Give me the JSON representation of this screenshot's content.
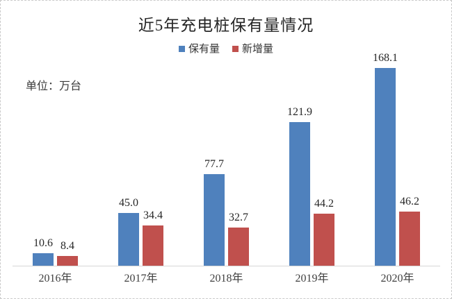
{
  "title": "近5年充电桩保有量情况",
  "unit_label": "单位：万台",
  "legend": {
    "items": [
      {
        "label": "保有量",
        "color": "#4f81bd"
      },
      {
        "label": "新增量",
        "color": "#c0504d"
      }
    ]
  },
  "chart_data": {
    "type": "bar",
    "title": "近5年充电桩保有量情况",
    "unit": "万台",
    "categories": [
      "2016年",
      "2017年",
      "2018年",
      "2019年",
      "2020年"
    ],
    "series": [
      {
        "name": "保有量",
        "color": "#4f81bd",
        "values": [
          10.6,
          45.0,
          77.7,
          121.9,
          168.1
        ]
      },
      {
        "name": "新增量",
        "color": "#c0504d",
        "values": [
          8.4,
          34.4,
          32.7,
          44.2,
          46.2
        ]
      }
    ],
    "ylim": [
      0,
      180
    ],
    "grid": false,
    "legend_position": "top",
    "value_labels": true,
    "value_label_decimals": 1,
    "axis_line_color": "#d6d6d6"
  },
  "colors": {
    "background": "#ffffff",
    "border": "#c9c9c9",
    "title_text": "#262626",
    "value_label_text": "#262626",
    "axis_label_text": "#3f3f3f"
  }
}
